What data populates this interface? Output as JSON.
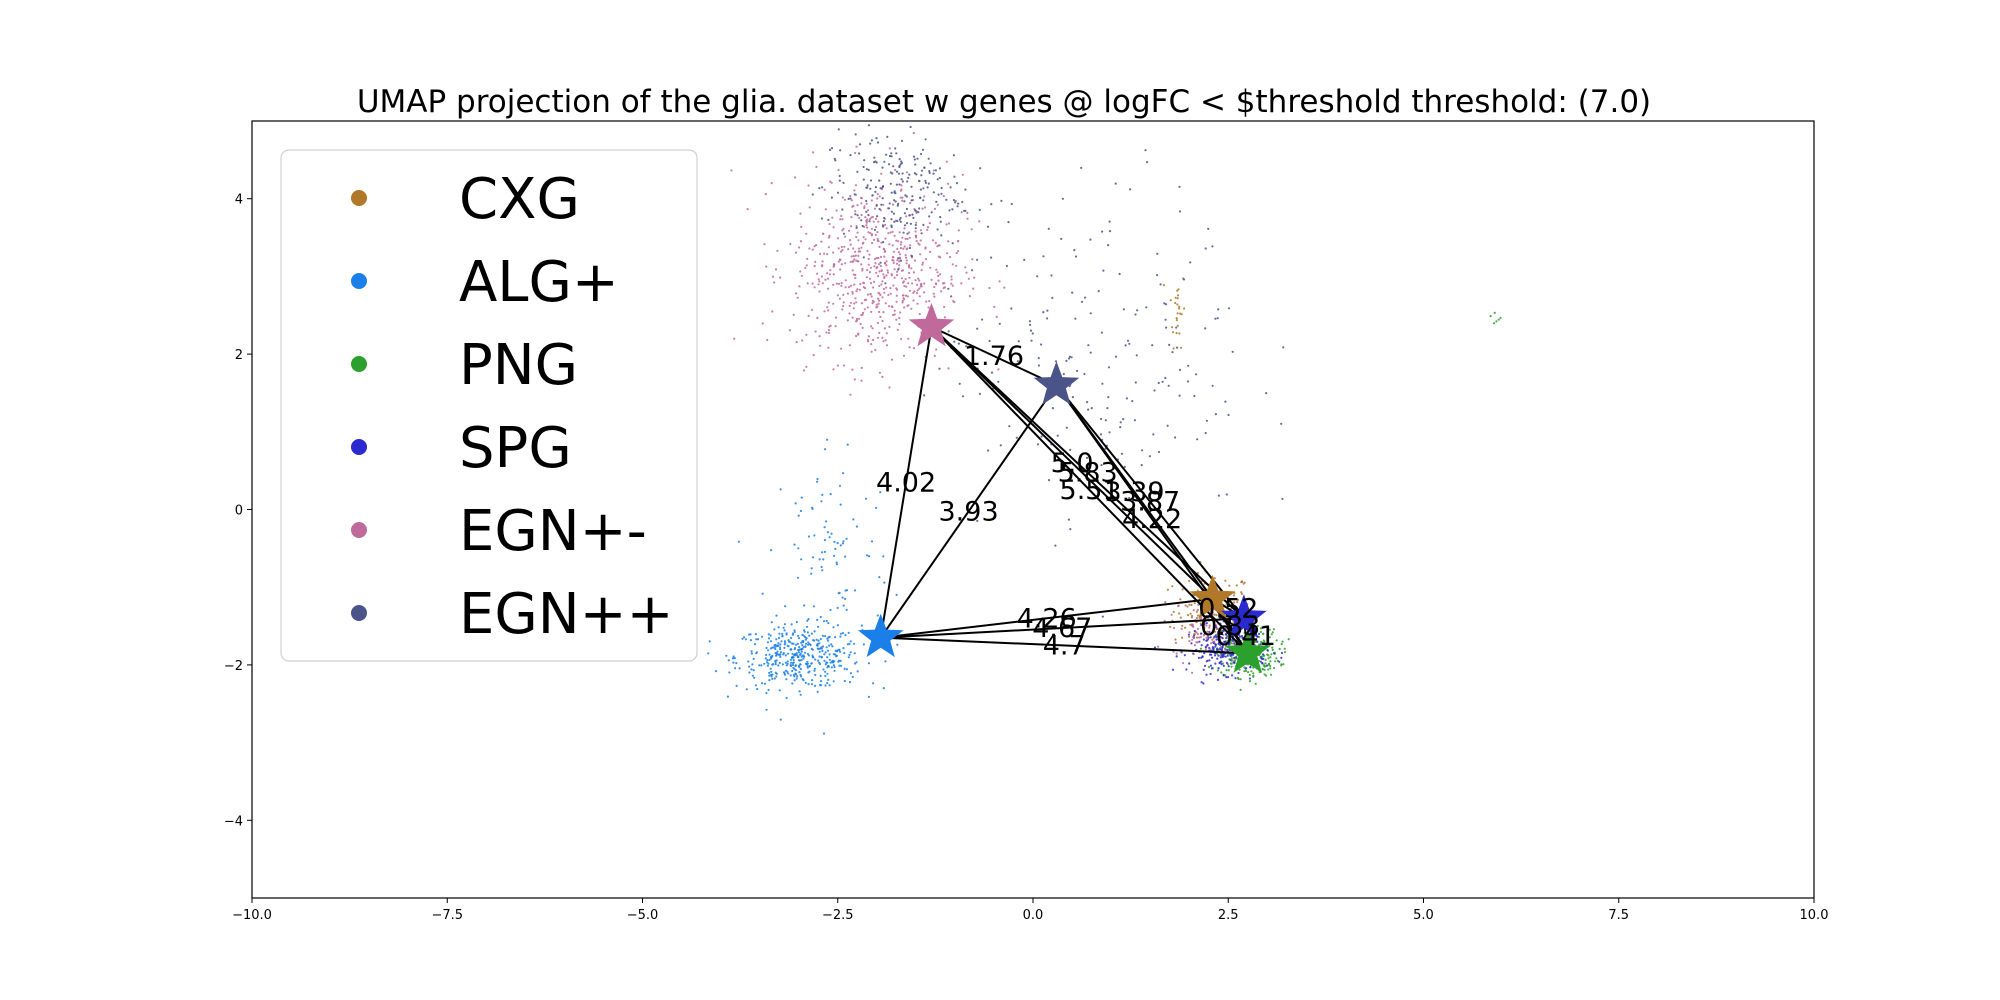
{
  "chart_data": {
    "type": "scatter",
    "title": "UMAP projection of the glia. dataset w genes @ logFC < $threshold threshold: (7.0)",
    "xlabel": "",
    "ylabel": "",
    "xlim": [
      -10,
      10
    ],
    "ylim": [
      -5,
      5
    ],
    "x_ticks": [
      -10.0,
      -7.5,
      -5.0,
      -2.5,
      0.0,
      2.5,
      5.0,
      7.5,
      10.0
    ],
    "x_tick_labels": [
      "−10.0",
      "−7.5",
      "−5.0",
      "−2.5",
      "0.0",
      "2.5",
      "5.0",
      "7.5",
      "10.0"
    ],
    "y_ticks": [
      4,
      2,
      0,
      -2,
      -4
    ],
    "y_tick_labels": [
      "4",
      "2",
      "0",
      "−2",
      "−4"
    ],
    "grid": false,
    "legend_position": "top-left",
    "series": [
      {
        "name": "CXG",
        "color": "#b07828",
        "clusters": [
          {
            "cx": 2.3,
            "cy": -1.3,
            "sx": 0.25,
            "sy": 0.25,
            "n": 160
          },
          {
            "cx": 1.85,
            "cy": 2.6,
            "sx": 0.05,
            "sy": 0.25,
            "n": 25
          }
        ],
        "centroid": [
          2.3,
          -1.15
        ]
      },
      {
        "name": "ALG+",
        "color": "#1a7fe8",
        "clusters": [
          {
            "cx": -3.0,
            "cy": -1.9,
            "sx": 0.4,
            "sy": 0.2,
            "n": 420
          },
          {
            "cx": -2.6,
            "cy": -0.6,
            "sx": 0.4,
            "sy": 0.8,
            "n": 90
          }
        ],
        "centroid": [
          -1.95,
          -1.65
        ]
      },
      {
        "name": "PNG",
        "color": "#2ca02c",
        "clusters": [
          {
            "cx": 2.75,
            "cy": -1.85,
            "sx": 0.2,
            "sy": 0.15,
            "n": 320
          },
          {
            "cx": 5.9,
            "cy": 2.45,
            "sx": 0.05,
            "sy": 0.05,
            "n": 6
          }
        ],
        "centroid": [
          2.75,
          -1.85
        ]
      },
      {
        "name": "SPG",
        "color": "#2a2ad0",
        "clusters": [
          {
            "cx": 2.5,
            "cy": -1.8,
            "sx": 0.25,
            "sy": 0.15,
            "n": 260
          }
        ],
        "centroid": [
          2.7,
          -1.4
        ]
      },
      {
        "name": "EGN+-",
        "color": "#c06a9c",
        "clusters": [
          {
            "cx": -2.0,
            "cy": 3.1,
            "sx": 0.55,
            "sy": 0.6,
            "n": 650
          },
          {
            "cx": 2.3,
            "cy": -1.5,
            "sx": 0.25,
            "sy": 0.2,
            "n": 120
          }
        ],
        "centroid": [
          -1.3,
          2.35
        ]
      },
      {
        "name": "EGN++",
        "color": "#4a5488",
        "clusters": [
          {
            "cx": -1.8,
            "cy": 4.1,
            "sx": 0.45,
            "sy": 0.4,
            "n": 220
          },
          {
            "cx": 0.8,
            "cy": 2.0,
            "sx": 1.0,
            "sy": 1.1,
            "n": 200
          }
        ],
        "centroid": [
          0.3,
          1.6
        ]
      }
    ],
    "edges": [
      {
        "from": 4,
        "to": 5,
        "label": "1.76"
      },
      {
        "from": 4,
        "to": 1,
        "label": "4.02"
      },
      {
        "from": 5,
        "to": 1,
        "label": "3.93"
      },
      {
        "from": 4,
        "to": 0,
        "label": "5.0"
      },
      {
        "from": 4,
        "to": 2,
        "label": "5.51"
      },
      {
        "from": 4,
        "to": 3,
        "label": "5.83"
      },
      {
        "from": 5,
        "to": 0,
        "label": "3.39"
      },
      {
        "from": 5,
        "to": 3,
        "label": "3.87"
      },
      {
        "from": 5,
        "to": 2,
        "label": "4.22"
      },
      {
        "from": 1,
        "to": 0,
        "label": "4.26"
      },
      {
        "from": 1,
        "to": 3,
        "label": "4.67"
      },
      {
        "from": 1,
        "to": 2,
        "label": "4.7"
      },
      {
        "from": 0,
        "to": 3,
        "label": "0.52"
      },
      {
        "from": 0,
        "to": 2,
        "label": "0.83"
      },
      {
        "from": 3,
        "to": 2,
        "label": "0.41"
      }
    ]
  }
}
